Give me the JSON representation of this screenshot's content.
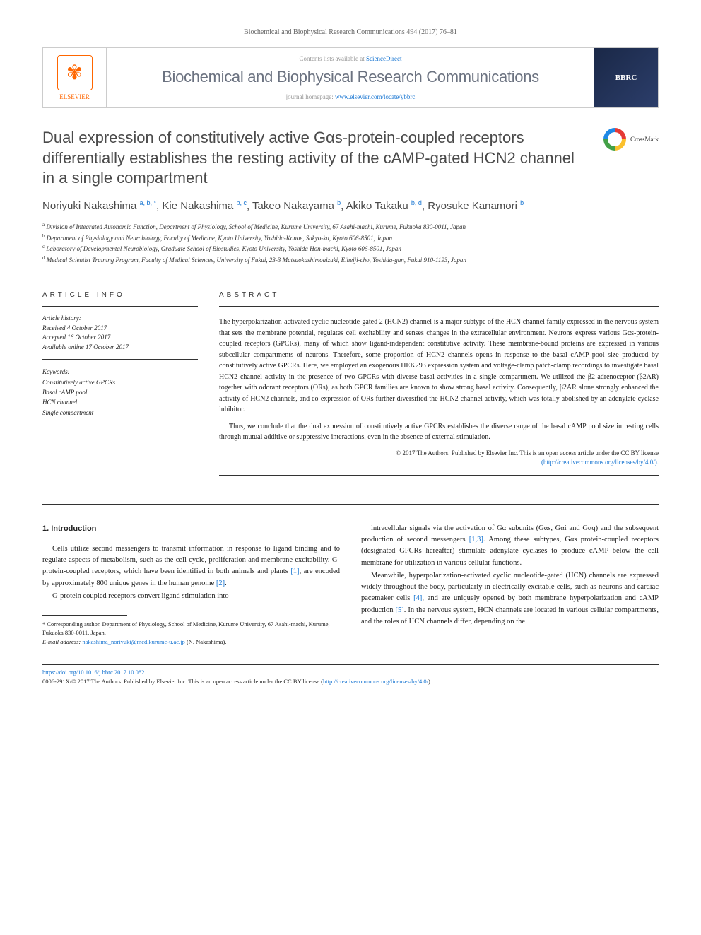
{
  "header": {
    "citation": "Biochemical and Biophysical Research Communications 494 (2017) 76–81",
    "contents_prefix": "Contents lists available at ",
    "contents_link": "ScienceDirect",
    "journal_name": "Biochemical and Biophysical Research Communications",
    "homepage_prefix": "journal homepage: ",
    "homepage_link": "www.elsevier.com/locate/ybbrc",
    "publisher": "ELSEVIER",
    "cover_label": "BBRC",
    "crossmark": "CrossMark"
  },
  "article": {
    "title": "Dual expression of constitutively active Gαs-protein-coupled receptors differentially establishes the resting activity of the cAMP-gated HCN2 channel in a single compartment",
    "authors_html": "Noriyuki Nakashima <sup>a, b, *</sup>, Kie Nakashima <sup>b, c</sup>, Takeo Nakayama <sup>b</sup>, Akiko Takaku <sup>b, d</sup>, Ryosuke Kanamori <sup>b</sup>",
    "affiliations": [
      "a Division of Integrated Autonomic Function, Department of Physiology, School of Medicine, Kurume University, 67 Asahi-machi, Kurume, Fukuoka 830-0011, Japan",
      "b Department of Physiology and Neurobiology, Faculty of Medicine, Kyoto University, Yoshida-Konoe, Sakyo-ku, Kyoto 606-8501, Japan",
      "c Laboratory of Developmental Neurobiology, Graduate School of Biostudies, Kyoto University, Yoshida Hon-machi, Kyoto 606-8501, Japan",
      "d Medical Scientist Training Program, Faculty of Medical Sciences, University of Fukui, 23-3 Matsuokashimoaizuki, Eiheiji-cho, Yoshida-gun, Fukui 910-1193, Japan"
    ]
  },
  "info": {
    "label": "ARTICLE INFO",
    "history_title": "Article history:",
    "history": [
      "Received 4 October 2017",
      "Accepted 16 October 2017",
      "Available online 17 October 2017"
    ],
    "keywords_title": "Keywords:",
    "keywords": [
      "Constitutively active GPCRs",
      "Basal cAMP pool",
      "HCN channel",
      "Single compartment"
    ]
  },
  "abstract": {
    "label": "ABSTRACT",
    "p1": "The hyperpolarization-activated cyclic nucleotide-gated 2 (HCN2) channel is a major subtype of the HCN channel family expressed in the nervous system that sets the membrane potential, regulates cell excitability and senses changes in the extracellular environment. Neurons express various Gαs-protein-coupled receptors (GPCRs), many of which show ligand-independent constitutive activity. These membrane-bound proteins are expressed in various subcellular compartments of neurons. Therefore, some proportion of HCN2 channels opens in response to the basal cAMP pool size produced by constitutively active GPCRs. Here, we employed an exogenous HEK293 expression system and voltage-clamp patch-clamp recordings to investigate basal HCN2 channel activity in the presence of two GPCRs with diverse basal activities in a single compartment. We utilized the β2-adrenoceptor (β2AR) together with odorant receptors (ORs), as both GPCR families are known to show strong basal activity. Consequently, β2AR alone strongly enhanced the activity of HCN2 channels, and co-expression of ORs further diversified the HCN2 channel activity, which was totally abolished by an adenylate cyclase inhibitor.",
    "p2": "Thus, we conclude that the dual expression of constitutively active GPCRs establishes the diverse range of the basal cAMP pool size in resting cells through mutual additive or suppressive interactions, even in the absence of external stimulation.",
    "copyright": "© 2017 The Authors. Published by Elsevier Inc. This is an open access article under the CC BY license",
    "license_url": "(http://creativecommons.org/licenses/by/4.0/)."
  },
  "body": {
    "section_title": "1. Introduction",
    "p1": "Cells utilize second messengers to transmit information in response to ligand binding and to regulate aspects of metabolism, such as the cell cycle, proliferation and membrane excitability. G-protein-coupled receptors, which have been identified in both animals and plants [1], are encoded by approximately 800 unique genes in the human genome [2].",
    "p2": "G-protein coupled receptors convert ligand stimulation into",
    "p3": "intracellular signals via the activation of Gα subunits (Gαs, Gαi and Gαq) and the subsequent production of second messengers [1,3]. Among these subtypes, Gαs protein-coupled receptors (designated GPCRs hereafter) stimulate adenylate cyclases to produce cAMP below the cell membrane for utilization in various cellular functions.",
    "p4": "Meanwhile, hyperpolarization-activated cyclic nucleotide-gated (HCN) channels are expressed widely throughout the body, particularly in electrically excitable cells, such as neurons and cardiac pacemaker cells [4], and are uniquely opened by both membrane hyperpolarization and cAMP production [5]. In the nervous system, HCN channels are located in various cellular compartments, and the roles of HCN channels differ, depending on the"
  },
  "footnotes": {
    "corr": "* Corresponding author. Department of Physiology, School of Medicine, Kurume University, 67 Asahi-machi, Kurume, Fukuoka 830-0011, Japan.",
    "email_label": "E-mail address:",
    "email": "nakashima_noriyuki@med.kurume-u.ac.jp",
    "email_suffix": "(N. Nakashima)."
  },
  "footer": {
    "doi": "https://doi.org/10.1016/j.bbrc.2017.10.082",
    "line": "0006-291X/© 2017 The Authors. Published by Elsevier Inc. This is an open access article under the CC BY license (",
    "license": "http://creativecommons.org/licenses/by/4.0/",
    "close": ")."
  },
  "colors": {
    "link": "#1976d2",
    "elsevier": "#ff6600",
    "journal_grey": "#6b7280",
    "text": "#222222"
  }
}
